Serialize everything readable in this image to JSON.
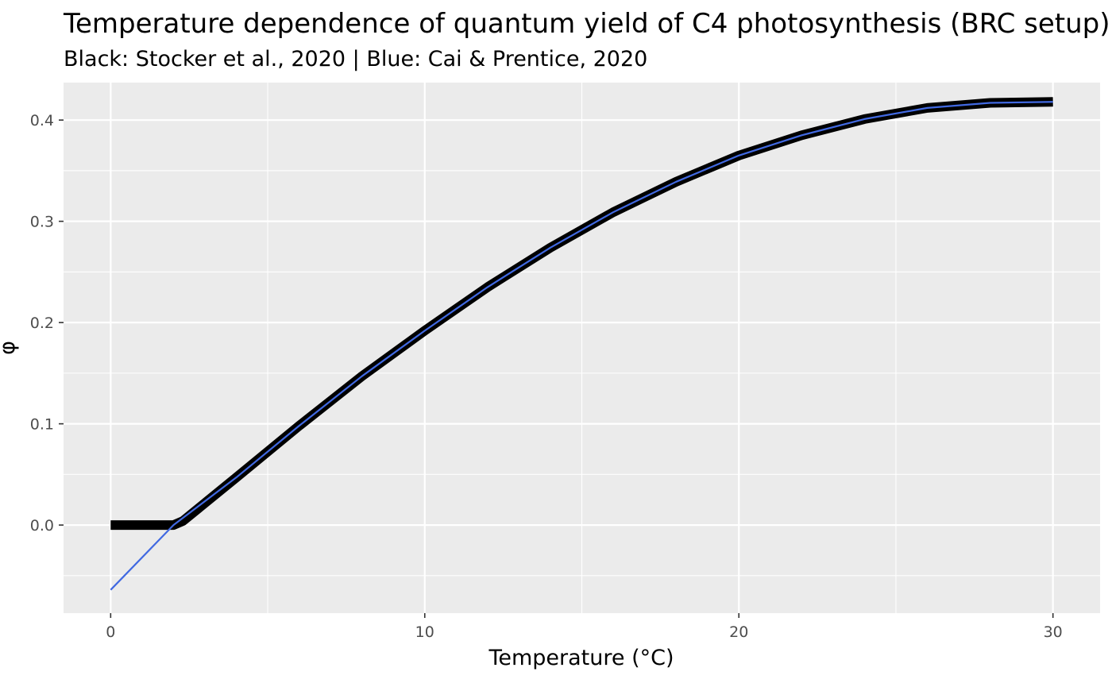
{
  "chart_data": {
    "type": "line",
    "title": "Temperature dependence of quantum yield of C4 photosynthesis (BRC setup)",
    "subtitle": "Black: Stocker et al., 2020 | Blue: Cai & Prentice, 2020",
    "xlabel": "Temperature (°C)",
    "ylabel": "φ",
    "xlim": [
      -1.5,
      31.5
    ],
    "ylim": [
      -0.087,
      0.437
    ],
    "x_ticks": [
      0,
      10,
      20,
      30
    ],
    "x_tick_labels": [
      "0",
      "10",
      "20",
      "30"
    ],
    "y_ticks": [
      0.0,
      0.1,
      0.2,
      0.3,
      0.4
    ],
    "y_tick_labels": [
      "0.0",
      "0.1",
      "0.2",
      "0.3",
      "0.4"
    ],
    "grid": true,
    "background": "#ebebeb",
    "grid_color": "#ffffff",
    "series": [
      {
        "color": "#000000",
        "x": [
          0,
          2,
          2.3,
          4,
          6,
          8,
          10,
          12,
          14,
          16,
          18,
          20,
          22,
          24,
          26,
          28,
          30
        ],
        "y": [
          0.0,
          0.0,
          0.004,
          0.047,
          0.098,
          0.147,
          0.192,
          0.235,
          0.274,
          0.309,
          0.339,
          0.365,
          0.385,
          0.401,
          0.412,
          0.417,
          0.418
        ]
      },
      {
        "color": "#4169e1",
        "x": [
          0,
          2,
          4,
          6,
          8,
          10,
          12,
          14,
          16,
          18,
          20,
          22,
          24,
          26,
          28,
          30
        ],
        "y": [
          -0.064,
          0.0,
          0.047,
          0.098,
          0.147,
          0.192,
          0.235,
          0.274,
          0.309,
          0.339,
          0.365,
          0.385,
          0.401,
          0.412,
          0.417,
          0.418
        ]
      }
    ]
  }
}
